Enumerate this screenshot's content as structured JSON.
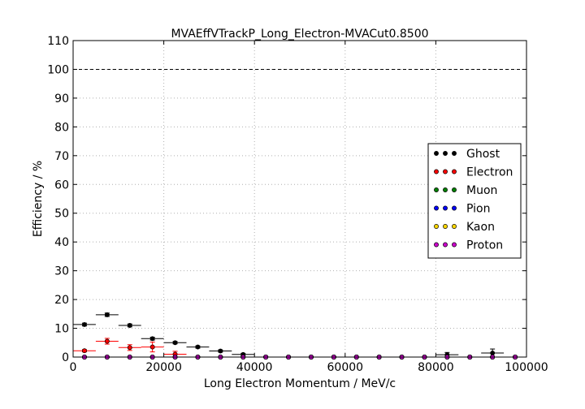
{
  "chart_data": {
    "type": "scatter",
    "title": "MVAEffVTrackP_Long_Electron-MVACut0.8500",
    "xlabel": "Long Electron Momentum / MeV/c",
    "ylabel": "Efficiency / %",
    "xlim": [
      0,
      100000
    ],
    "ylim": [
      0,
      110
    ],
    "x_ticks": [
      0,
      20000,
      40000,
      60000,
      80000,
      100000
    ],
    "y_ticks": [
      0,
      10,
      20,
      30,
      40,
      50,
      60,
      70,
      80,
      90,
      100,
      110
    ],
    "reference_line": 100,
    "grid": true,
    "legend_position": "right",
    "bin_width": 5000,
    "bins_x": [
      2500,
      7500,
      12500,
      17500,
      22500,
      27500,
      32500,
      37500,
      42500,
      47500,
      52500,
      57500,
      62500,
      67500,
      72500,
      77500,
      82500,
      87500,
      92500,
      97500
    ],
    "series": [
      {
        "name": "Ghost",
        "color": "#000000",
        "values": [
          11.3,
          14.7,
          11.0,
          6.4,
          5.0,
          3.5,
          2.1,
          0.9,
          0.0,
          0.0,
          0.0,
          0.0,
          0.0,
          0.0,
          0.0,
          0.0,
          0.8,
          0.0,
          1.4,
          0.0
        ],
        "errors": [
          0.5,
          0.6,
          0.5,
          0.5,
          0.4,
          0.4,
          0.4,
          0.4,
          0.2,
          0,
          0,
          0,
          0,
          0,
          0,
          0,
          0.8,
          0,
          1.4,
          0
        ]
      },
      {
        "name": "Electron",
        "color": "#ff0000",
        "values": [
          2.2,
          5.5,
          3.3,
          3.5,
          1.0,
          0.0,
          0.0,
          0.0,
          0.0,
          0.0,
          0.0,
          0.0,
          0.0,
          0.0,
          0.0,
          0.0,
          0.0,
          0.0,
          0.0,
          0.0
        ],
        "errors": [
          0.4,
          1.0,
          1.0,
          1.7,
          1.0,
          0,
          0,
          0,
          0,
          0,
          0,
          0,
          0,
          0,
          0,
          0,
          0,
          0,
          0,
          0
        ]
      },
      {
        "name": "Muon",
        "color": "#008000",
        "values": [
          0,
          0,
          0,
          0,
          0,
          0,
          0,
          0,
          0,
          0,
          0,
          0,
          0,
          0,
          0,
          0,
          0,
          0,
          0,
          0
        ],
        "errors": [
          0,
          0,
          0,
          0,
          0,
          0,
          0,
          0,
          0,
          0,
          0,
          0,
          0,
          0,
          0,
          0,
          0,
          0,
          0,
          0
        ]
      },
      {
        "name": "Pion",
        "color": "#0000ff",
        "values": [
          0,
          0,
          0,
          0,
          0,
          0,
          0,
          0,
          0,
          0,
          0,
          0,
          0,
          0,
          0,
          0,
          0,
          0,
          0,
          0
        ],
        "errors": [
          0,
          0,
          0,
          0,
          0,
          0,
          0,
          0,
          0,
          0,
          0,
          0,
          0,
          0,
          0,
          0,
          0,
          0,
          0,
          0
        ]
      },
      {
        "name": "Kaon",
        "color": "#ffd700",
        "values": [
          0,
          0,
          0,
          0,
          0,
          0,
          0,
          0,
          0,
          0,
          0,
          0,
          0,
          0,
          0,
          0,
          0,
          0,
          0,
          0
        ],
        "errors": [
          0,
          0,
          0,
          0,
          0,
          0,
          0,
          0,
          0,
          0,
          0,
          0,
          0,
          0,
          0,
          0,
          0,
          0,
          0,
          0
        ]
      },
      {
        "name": "Proton",
        "color": "#cc00cc",
        "values": [
          0,
          0,
          0,
          0,
          0,
          0,
          0,
          0,
          0,
          0,
          0,
          0,
          0,
          0,
          0,
          0,
          0,
          0,
          0,
          0
        ],
        "errors": [
          0,
          0,
          0,
          0,
          0,
          0,
          0,
          0,
          0,
          0,
          0,
          0,
          0,
          0,
          0,
          0,
          0,
          0,
          0,
          0
        ]
      }
    ]
  }
}
